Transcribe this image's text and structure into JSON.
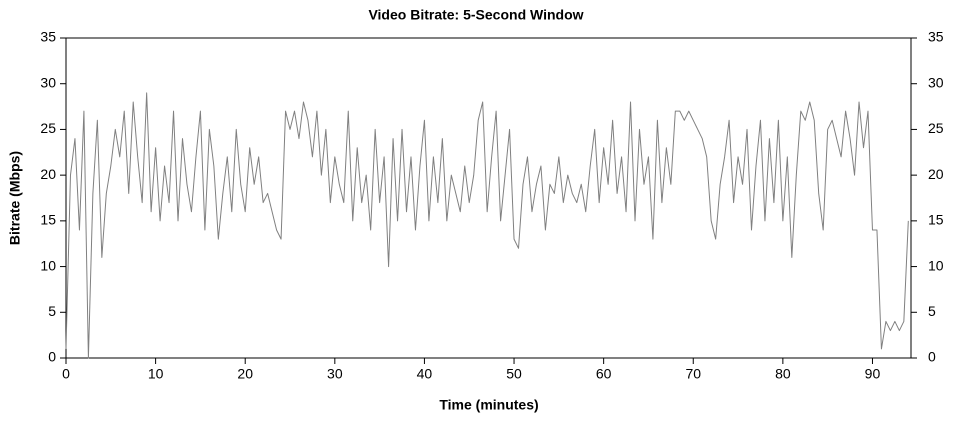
{
  "chart_data": {
    "type": "line",
    "title": "Video Bitrate: 5-Second Window",
    "x_label": "Time (minutes)",
    "y_label": "Bitrate (Mbps)",
    "xlim": [
      0,
      94.3
    ],
    "xticks": [
      0,
      10,
      20,
      30,
      40,
      50,
      60,
      70,
      80,
      90
    ],
    "ylim": [
      0,
      35
    ],
    "yticks": [
      0,
      5,
      10,
      15,
      20,
      25,
      30,
      35
    ],
    "y2lim": [
      0,
      35
    ],
    "y2ticks": [
      0,
      5,
      10,
      15,
      20,
      25,
      30,
      35
    ],
    "x": [
      0,
      0.5,
      1,
      1.5,
      2,
      2.5,
      3,
      3.5,
      4,
      4.5,
      5,
      5.5,
      6,
      6.5,
      7,
      7.5,
      8,
      8.5,
      9,
      9.5,
      10,
      10.5,
      11,
      11.5,
      12,
      12.5,
      13,
      13.5,
      14,
      14.5,
      15,
      15.5,
      16,
      16.5,
      17,
      17.5,
      18,
      18.5,
      19,
      19.5,
      20,
      20.5,
      21,
      21.5,
      22,
      22.5,
      23,
      23.5,
      24,
      24.5,
      25,
      25.5,
      26,
      26.5,
      27,
      27.5,
      28,
      28.5,
      29,
      29.5,
      30,
      30.5,
      31,
      31.5,
      32,
      32.5,
      33,
      33.5,
      34,
      34.5,
      35,
      35.5,
      36,
      36.5,
      37,
      37.5,
      38,
      38.5,
      39,
      39.5,
      40,
      40.5,
      41,
      41.5,
      42,
      42.5,
      43,
      43.5,
      44,
      44.5,
      45,
      45.5,
      46,
      46.5,
      47,
      47.5,
      48,
      48.5,
      49,
      49.5,
      50,
      50.5,
      51,
      51.5,
      52,
      52.5,
      53,
      53.5,
      54,
      54.5,
      55,
      55.5,
      56,
      56.5,
      57,
      57.5,
      58,
      58.5,
      59,
      59.5,
      60,
      60.5,
      61,
      61.5,
      62,
      62.5,
      63,
      63.5,
      64,
      64.5,
      65,
      65.5,
      66,
      66.5,
      67,
      67.5,
      68,
      68.5,
      69,
      69.5,
      70,
      70.5,
      71,
      71.5,
      72,
      72.5,
      73,
      73.5,
      74,
      74.5,
      75,
      75.5,
      76,
      76.5,
      77,
      77.5,
      78,
      78.5,
      79,
      79.5,
      80,
      80.5,
      81,
      81.5,
      82,
      82.5,
      83,
      83.5,
      84,
      84.5,
      85,
      85.5,
      86,
      86.5,
      87,
      87.5,
      88,
      88.5,
      89,
      89.5,
      90,
      90.5,
      91,
      91.5,
      92,
      92.5,
      93,
      93.5,
      94
    ],
    "series": [
      {
        "name": "Bitrate",
        "color": "#808080",
        "values": [
          1,
          20,
          24,
          14,
          27,
          0,
          18,
          26,
          11,
          18,
          21,
          25,
          22,
          27,
          18,
          28,
          22,
          17,
          29,
          16,
          23,
          15,
          21,
          17,
          27,
          15,
          24,
          19,
          16,
          22,
          27,
          14,
          25,
          21,
          13,
          18,
          22,
          16,
          25,
          19,
          16,
          23,
          19,
          22,
          17,
          18,
          16,
          14,
          13,
          27,
          25,
          27,
          24,
          28,
          26,
          22,
          27,
          20,
          25,
          17,
          22,
          19,
          17,
          27,
          15,
          23,
          17,
          20,
          14,
          25,
          17,
          22,
          10,
          24,
          15,
          25,
          16,
          22,
          14,
          21,
          26,
          15,
          22,
          17,
          24,
          15,
          20,
          18,
          16,
          21,
          17,
          20,
          26,
          28,
          16,
          22,
          27,
          15,
          20,
          25,
          13,
          12,
          19,
          22,
          16,
          19,
          21,
          14,
          19,
          18,
          22,
          17,
          20,
          18,
          17,
          19,
          16,
          21,
          25,
          17,
          23,
          19,
          26,
          18,
          22,
          16,
          28,
          15,
          25,
          19,
          22,
          13,
          26,
          17,
          23,
          19,
          27,
          27,
          26,
          27,
          26,
          25,
          24,
          22,
          15,
          13,
          19,
          22,
          26,
          17,
          22,
          19,
          25,
          14,
          21,
          26,
          15,
          24,
          17,
          26,
          15,
          22,
          11,
          20,
          27,
          26,
          28,
          26,
          18,
          14,
          25,
          26,
          24,
          22,
          27,
          24,
          20,
          28,
          23,
          27,
          14,
          14,
          1,
          4,
          3,
          4,
          3,
          4,
          15
        ]
      }
    ]
  }
}
